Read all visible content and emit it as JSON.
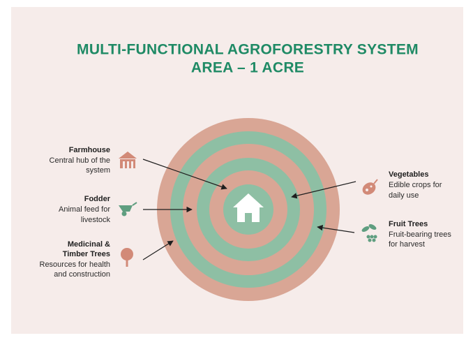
{
  "title": [
    "MULTI-FUNCTIONAL AGROFORESTRY SYSTEM",
    "AREA – 1 ACRE"
  ],
  "callouts": [
    {
      "label": [
        "Farmhouse"
      ],
      "description": [
        "Central hub of the",
        "system"
      ]
    },
    {
      "label": [
        "Fodder"
      ],
      "description": [
        "Animal feed for",
        "livestock"
      ]
    },
    {
      "label": [
        "Medicinal &",
        "Timber Trees"
      ],
      "description": [
        "Resources for health",
        "and construction"
      ]
    },
    {
      "label": [
        "Vegetables"
      ],
      "description": [
        "Edible crops for",
        "daily use"
      ]
    },
    {
      "label": [
        "Fruit Trees"
      ],
      "description": [
        "Fruit-bearing trees",
        "for harvest"
      ]
    }
  ]
}
